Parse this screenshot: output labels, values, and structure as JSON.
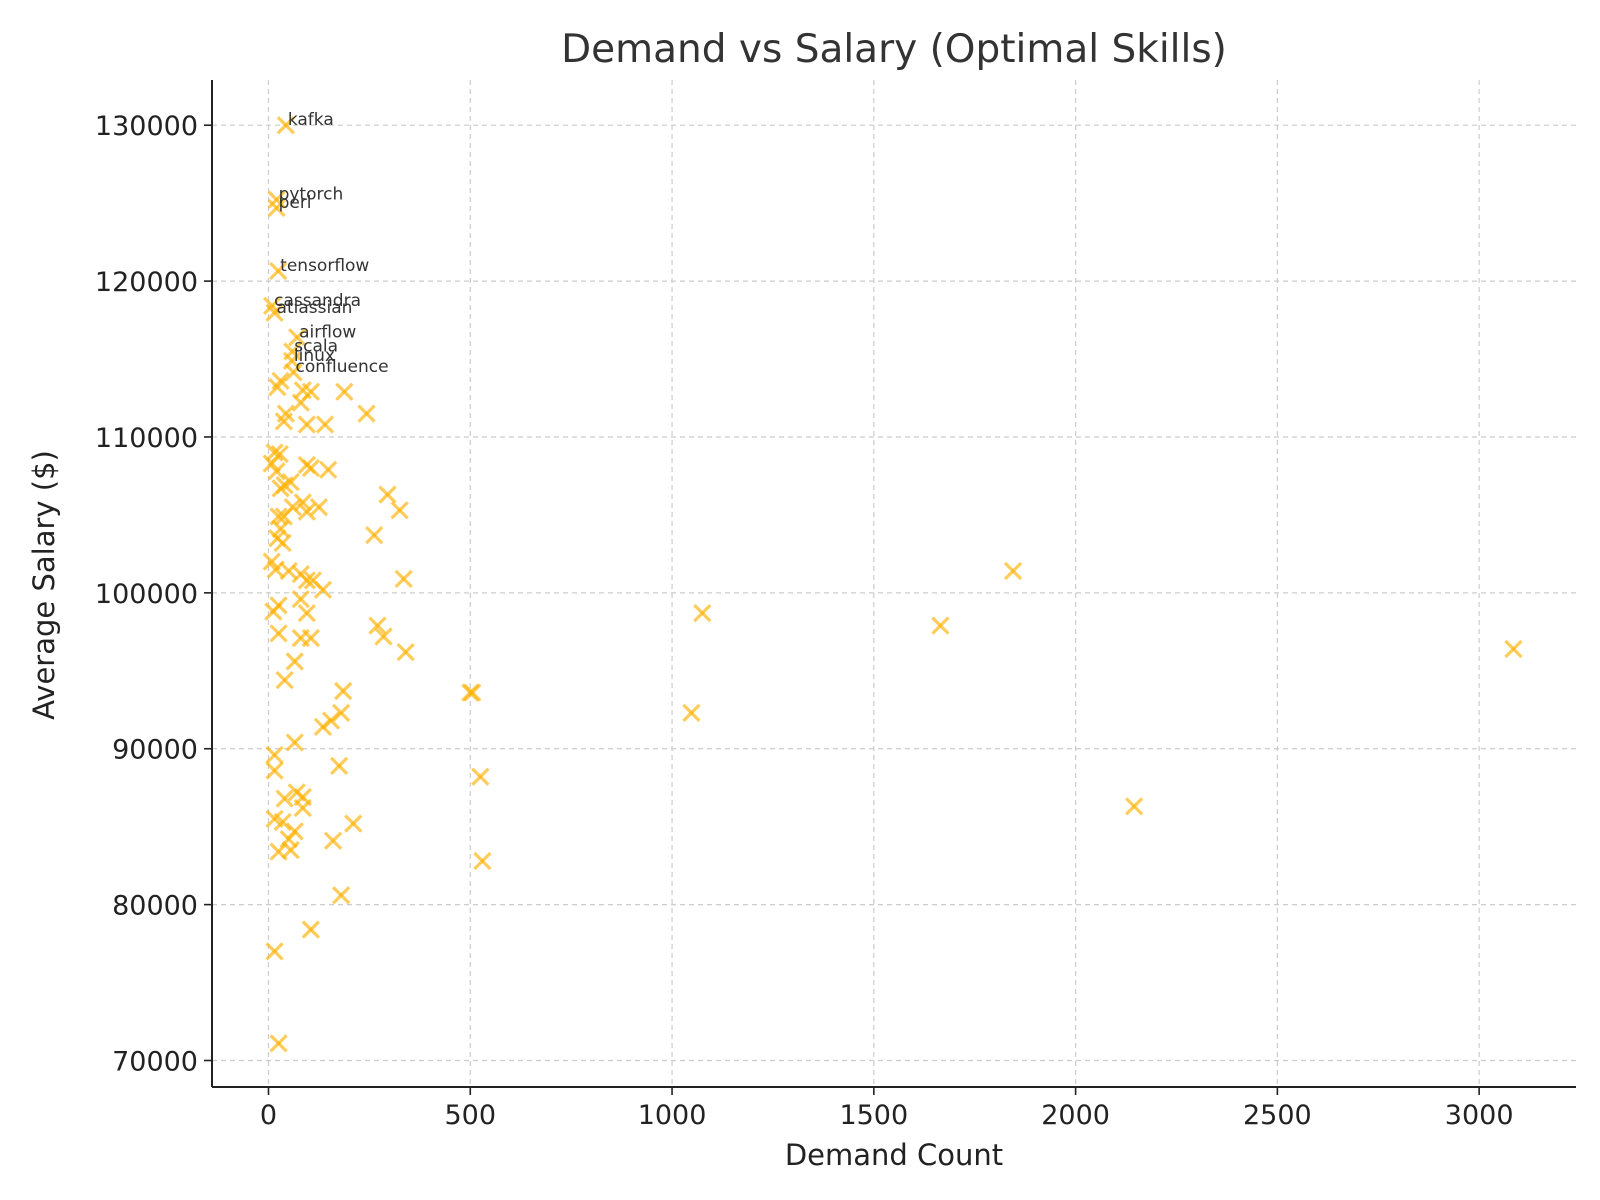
{
  "chart_data": {
    "type": "scatter",
    "title": "Demand vs Salary (Optimal Skills)",
    "xlabel": "Demand Count",
    "ylabel": "Average Salary ($)",
    "xlim": [
      -140,
      3240
    ],
    "ylim": [
      68300,
      132900
    ],
    "xticks": [
      0,
      500,
      1000,
      1500,
      2000,
      2500,
      3000
    ],
    "yticks": [
      70000,
      80000,
      90000,
      100000,
      110000,
      120000,
      130000
    ],
    "grid": true,
    "marker": "x",
    "color": "#ffb000",
    "annotations": [
      {
        "label": "kafka",
        "x": 43,
        "y": 129999
      },
      {
        "label": "pytorch",
        "x": 20,
        "y": 125226
      },
      {
        "label": "perl",
        "x": 20,
        "y": 124686
      },
      {
        "label": "tensorflow",
        "x": 24,
        "y": 120647
      },
      {
        "label": "cassandra",
        "x": 9,
        "y": 118407
      },
      {
        "label": "atlassian",
        "x": 15,
        "y": 117966
      },
      {
        "label": "airflow",
        "x": 71,
        "y": 116387
      },
      {
        "label": "scala",
        "x": 59,
        "y": 115480
      },
      {
        "label": "linux",
        "x": 58,
        "y": 114883
      },
      {
        "label": "confluence",
        "x": 62,
        "y": 114153
      }
    ],
    "points": [
      [
        43,
        129999
      ],
      [
        20,
        125226
      ],
      [
        20,
        124686
      ],
      [
        24,
        120647
      ],
      [
        9,
        118407
      ],
      [
        15,
        117966
      ],
      [
        71,
        116387
      ],
      [
        59,
        115480
      ],
      [
        58,
        114883
      ],
      [
        62,
        114153
      ],
      [
        30,
        113600
      ],
      [
        22,
        113200
      ],
      [
        85,
        113000
      ],
      [
        105,
        112900
      ],
      [
        188,
        112900
      ],
      [
        80,
        112200
      ],
      [
        43,
        111500
      ],
      [
        38,
        111000
      ],
      [
        140,
        110800
      ],
      [
        95,
        110800
      ],
      [
        243,
        111500
      ],
      [
        15,
        109000
      ],
      [
        28,
        108900
      ],
      [
        8,
        108300
      ],
      [
        95,
        108200
      ],
      [
        105,
        108000
      ],
      [
        148,
        107900
      ],
      [
        20,
        107800
      ],
      [
        55,
        107100
      ],
      [
        40,
        106900
      ],
      [
        30,
        106700
      ],
      [
        295,
        106300
      ],
      [
        85,
        105800
      ],
      [
        60,
        105500
      ],
      [
        125,
        105500
      ],
      [
        95,
        105200
      ],
      [
        325,
        105300
      ],
      [
        25,
        104900
      ],
      [
        38,
        104900
      ],
      [
        30,
        104100
      ],
      [
        262,
        103700
      ],
      [
        22,
        103500
      ],
      [
        35,
        103200
      ],
      [
        8,
        102000
      ],
      [
        18,
        101500
      ],
      [
        50,
        101400
      ],
      [
        80,
        101200
      ],
      [
        95,
        100800
      ],
      [
        110,
        100800
      ],
      [
        335,
        100900
      ],
      [
        135,
        100200
      ],
      [
        80,
        99600
      ],
      [
        25,
        99200
      ],
      [
        12,
        98800
      ],
      [
        95,
        98700
      ],
      [
        1075,
        98700
      ],
      [
        1665,
        97900
      ],
      [
        1845,
        101400
      ],
      [
        270,
        97900
      ],
      [
        285,
        97200
      ],
      [
        25,
        97400
      ],
      [
        80,
        97100
      ],
      [
        105,
        97100
      ],
      [
        340,
        96200
      ],
      [
        3085,
        96400
      ],
      [
        65,
        95600
      ],
      [
        40,
        94400
      ],
      [
        500,
        93600
      ],
      [
        505,
        93600
      ],
      [
        185,
        93700
      ],
      [
        1048,
        92300
      ],
      [
        180,
        92300
      ],
      [
        155,
        91800
      ],
      [
        135,
        91400
      ],
      [
        65,
        90400
      ],
      [
        15,
        89600
      ],
      [
        175,
        88900
      ],
      [
        15,
        88600
      ],
      [
        525,
        88200
      ],
      [
        70,
        87200
      ],
      [
        85,
        86900
      ],
      [
        40,
        86800
      ],
      [
        85,
        86200
      ],
      [
        2145,
        86300
      ],
      [
        15,
        85500
      ],
      [
        35,
        85300
      ],
      [
        210,
        85200
      ],
      [
        65,
        84700
      ],
      [
        50,
        84200
      ],
      [
        160,
        84100
      ],
      [
        25,
        83400
      ],
      [
        55,
        83500
      ],
      [
        530,
        82800
      ],
      [
        180,
        80600
      ],
      [
        105,
        78400
      ],
      [
        15,
        77000
      ],
      [
        25,
        71100
      ]
    ]
  }
}
